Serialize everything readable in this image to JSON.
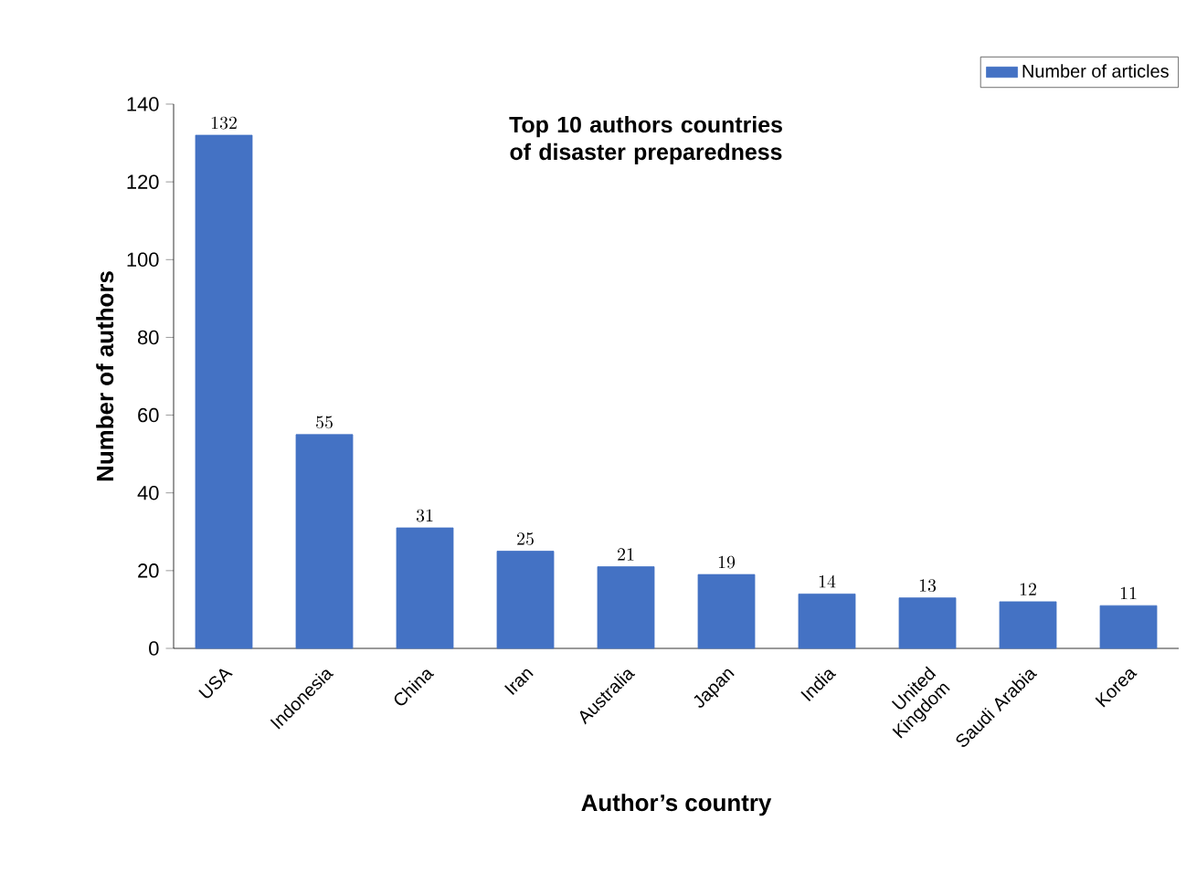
{
  "chart_data": {
    "type": "bar",
    "title": "Top 10 authors countries of disaster preparedness",
    "xlabel": "Author’s country",
    "ylabel": "Number of authors",
    "categories": [
      "USA",
      "Indonesia",
      "China",
      "Iran",
      "Australia",
      "Japan",
      "India",
      "United Kingdom",
      "Saudi Arabia",
      "Korea"
    ],
    "series": [
      {
        "name": "Number of articles",
        "color": "#4472c4",
        "values": [
          132,
          55,
          31,
          25,
          21,
          19,
          14,
          13,
          12,
          11
        ]
      }
    ],
    "ylim": [
      0,
      140
    ],
    "yticks": [
      0,
      20,
      40,
      60,
      80,
      100,
      120,
      140
    ],
    "data_labels": true,
    "legend": "top right"
  }
}
